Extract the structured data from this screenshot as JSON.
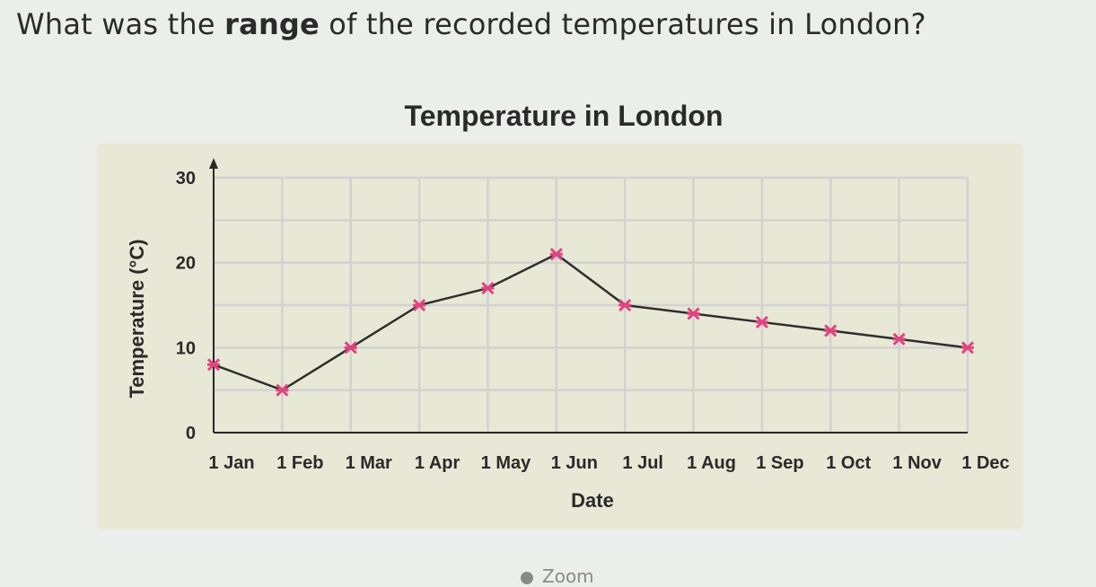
{
  "question": {
    "prefix": "What was the ",
    "bold": "range",
    "suffix": " of the recorded temperatures in London?"
  },
  "zoom_label": "Zoom",
  "colors": {
    "panel": "#e8e8d6",
    "line": "#2e2e2e",
    "marker": "#e0447e",
    "grid": "#d2d2d2"
  },
  "chart_data": {
    "type": "line",
    "title": "Temperature in London",
    "xlabel": "Date",
    "ylabel": "Temperature (°C)",
    "categories": [
      "1 Jan",
      "1 Feb",
      "1 Mar",
      "1 Apr",
      "1 May",
      "1 Jun",
      "1 Jul",
      "1 Aug",
      "1 Sep",
      "1 Oct",
      "1 Nov",
      "1 Dec"
    ],
    "values": [
      8,
      5,
      10,
      15,
      17,
      21,
      15,
      14,
      13,
      12,
      11,
      10
    ],
    "ylim": [
      0,
      30
    ],
    "yticks": [
      0,
      10,
      20,
      30
    ],
    "grid": true
  }
}
